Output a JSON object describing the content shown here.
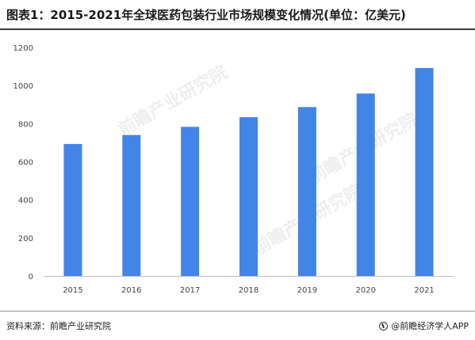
{
  "header": {
    "title": "图表1：2015-2021年全球医药包装行业市场规模变化情况(单位：亿美元)"
  },
  "chart_data": {
    "type": "bar",
    "title": "图表1：2015-2021年全球医药包装行业市场规模变化情况(单位：亿美元)",
    "categories": [
      "2015",
      "2016",
      "2017",
      "2018",
      "2019",
      "2020",
      "2021"
    ],
    "values": [
      693,
      740,
      783,
      834,
      887,
      958,
      1092
    ],
    "ylim": [
      0,
      1200
    ],
    "yticks": [
      0,
      200,
      400,
      600,
      800,
      1000,
      1200
    ],
    "grid": false,
    "bar_color": "#4285e6",
    "xlabel": "",
    "ylabel": ""
  },
  "footer": {
    "source": "资料来源：前瞻产业研究院",
    "brand": "@前瞻经济学人APP"
  },
  "watermark": {
    "text": "前瞻产业研究院"
  }
}
